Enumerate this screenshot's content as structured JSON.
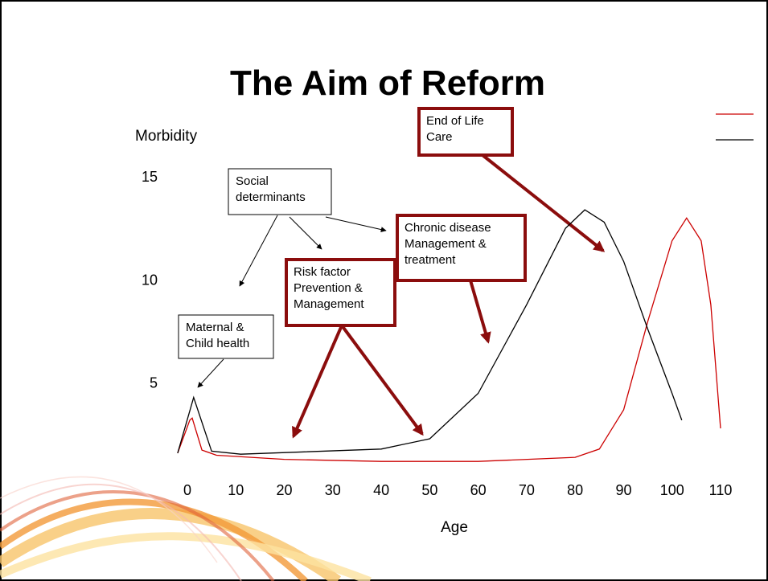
{
  "chart_data": {
    "type": "line",
    "title": "The Aim of Reform",
    "y_label": "Morbidity",
    "x_label": "Age",
    "xlim": [
      0,
      110
    ],
    "xticks": [
      0,
      10,
      20,
      30,
      40,
      50,
      60,
      70,
      80,
      90,
      100,
      110
    ],
    "ylim": [
      0,
      15
    ],
    "yticks": [
      5,
      10,
      15
    ],
    "series": [
      {
        "color": "#cc0000",
        "x": [
          -2,
          0.5,
          1,
          3,
          6,
          20,
          40,
          60,
          80,
          85,
          90,
          95,
          100,
          103,
          106,
          108,
          110
        ],
        "values": [
          1.6,
          3.2,
          3.3,
          1.75,
          1.5,
          1.3,
          1.2,
          1.2,
          1.4,
          1.8,
          3.7,
          8.0,
          11.9,
          13.0,
          11.9,
          8.8,
          2.8
        ]
      },
      {
        "color": "#000000",
        "x": [
          -2,
          1.3,
          5,
          11,
          40,
          50,
          60,
          70,
          78,
          82,
          86,
          90,
          95,
          100,
          102
        ],
        "values": [
          1.6,
          4.3,
          1.7,
          1.55,
          1.8,
          2.3,
          4.5,
          8.8,
          12.5,
          13.4,
          12.8,
          10.9,
          7.6,
          4.5,
          3.2
        ]
      }
    ],
    "annotations": [
      [
        "Social",
        "determinants"
      ],
      [
        "Maternal &",
        "Child health"
      ],
      [
        "Risk factor",
        "Prevention &",
        "Management"
      ],
      [
        "Chronic disease",
        "Management &",
        "treatment"
      ],
      [
        "End of Life",
        "Care"
      ]
    ]
  }
}
